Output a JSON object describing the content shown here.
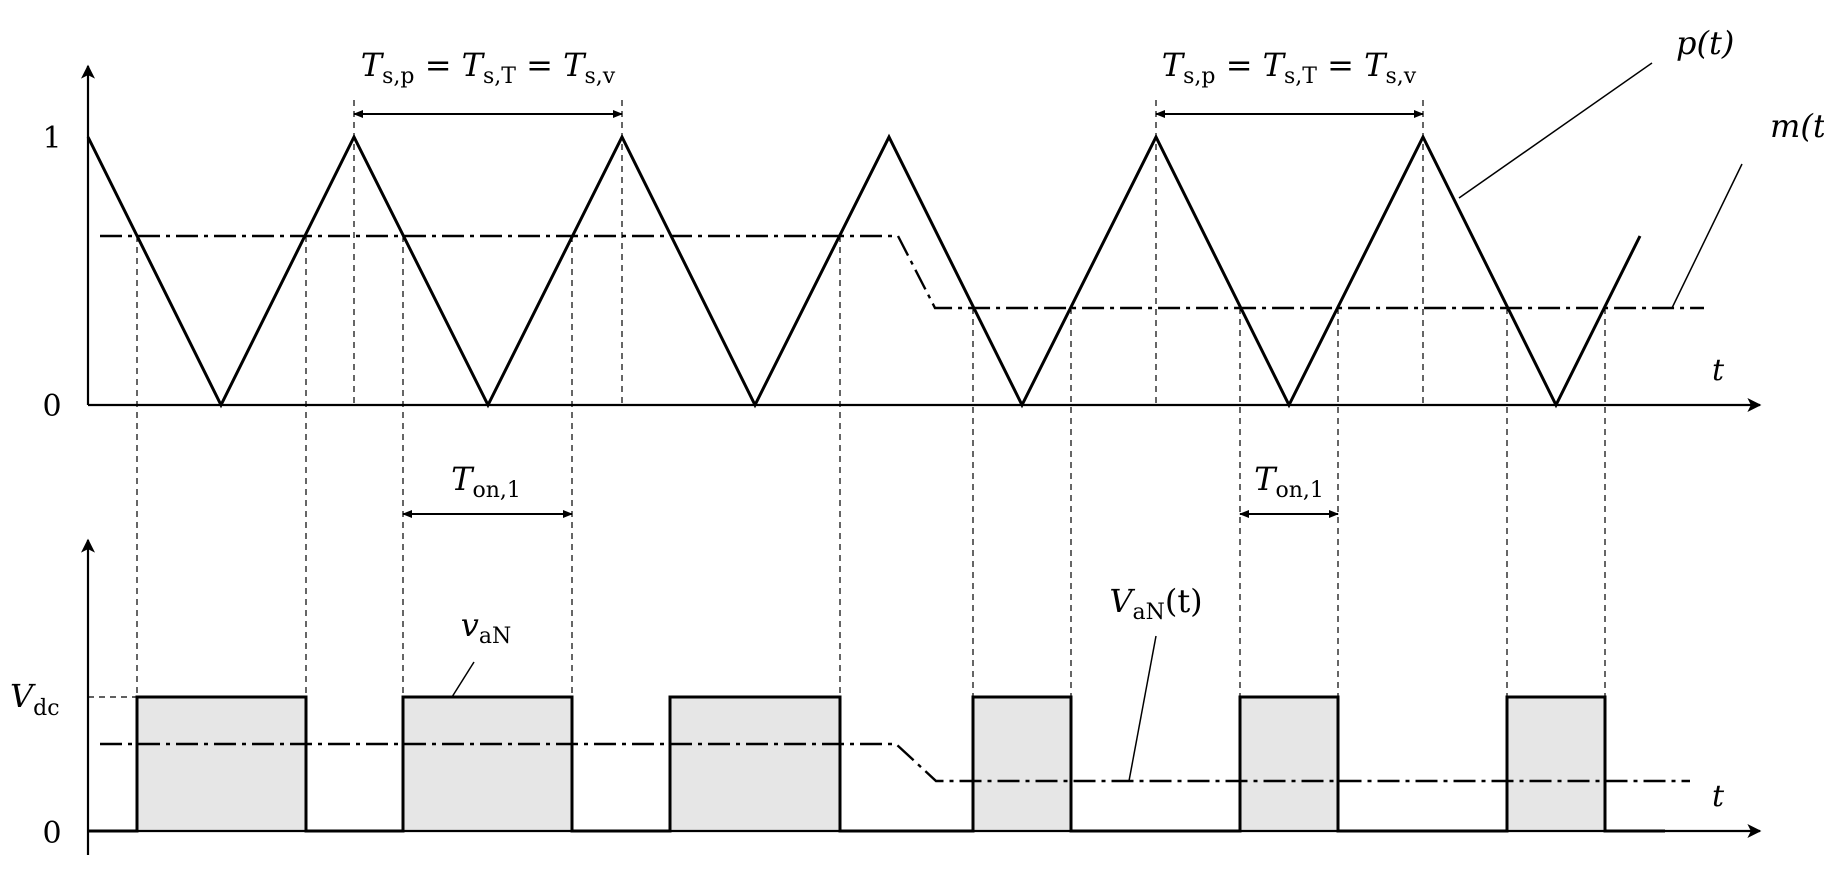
{
  "colors": {
    "stroke": "#000000",
    "pulse_fill": "#e6e6e6",
    "background": "#ffffff"
  },
  "top_plot": {
    "y_tick_one": "1",
    "y_tick_zero": "0",
    "t_axis_label": "t",
    "carrier_label": "p(t)",
    "modulation_label": "m(t)",
    "period_label_left": {
      "T1": "T",
      "sub1": "s,p",
      "eq1": " = ",
      "T2": "T",
      "sub2": "s,T",
      "eq2": " = ",
      "T3": "T",
      "sub3": "s,v"
    },
    "period_label_right": {
      "T1": "T",
      "sub1": "s,p",
      "eq1": " = ",
      "T2": "T",
      "sub2": "s,T",
      "eq2": " = ",
      "T3": "T",
      "sub3": "s,v"
    },
    "carrier_peak": 1,
    "carrier_trough": 0,
    "modulation_level_before": 0.63,
    "modulation_level_after": 0.36
  },
  "bottom_plot": {
    "y_tick_vdc": {
      "V": "V",
      "sub": "dc"
    },
    "y_tick_zero": "0",
    "t_axis_label": "t",
    "switching_label": {
      "v": "v",
      "sub": "aN"
    },
    "average_label": {
      "V": "V",
      "sub": "aN",
      "arg": "(t)"
    },
    "ton_left": {
      "T": "T",
      "sub": "on,1"
    },
    "ton_right": {
      "T": "T",
      "sub": "on,1"
    }
  }
}
